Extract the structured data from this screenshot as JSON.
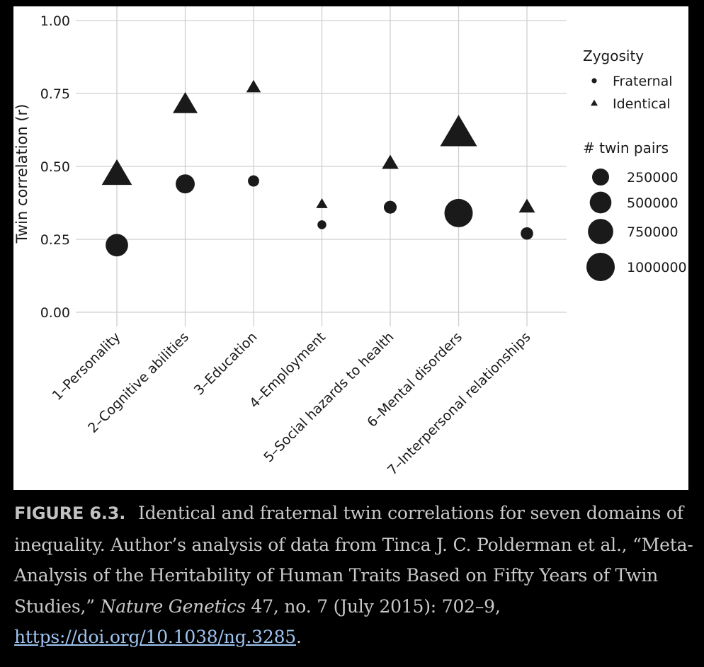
{
  "chart_data": {
    "type": "scatter",
    "ylabel": "Twin correlation (r)",
    "ylim": [
      0,
      1
    ],
    "yticks": [
      "0.00",
      "0.25",
      "0.50",
      "0.75",
      "1.00"
    ],
    "ytick_values": [
      0,
      0.25,
      0.5,
      0.75,
      1.0
    ],
    "categories": [
      "1–Personality",
      "2–Cognitive abilities",
      "3–Education",
      "4–Employment",
      "5–Social hazards to health",
      "6–Mental disorders",
      "7–Interpersonal relationships"
    ],
    "series": [
      {
        "name": "Fraternal",
        "shape": "circle",
        "values": [
          0.23,
          0.44,
          0.45,
          0.3,
          0.36,
          0.34,
          0.27
        ],
        "twin_pairs": [
          550000,
          350000,
          60000,
          20000,
          100000,
          1000000,
          90000
        ]
      },
      {
        "name": "Identical",
        "shape": "triangle",
        "values": [
          0.47,
          0.71,
          0.77,
          0.37,
          0.51,
          0.61,
          0.36
        ],
        "twin_pairs": [
          600000,
          350000,
          60000,
          20000,
          100000,
          1000000,
          90000
        ]
      }
    ],
    "grid": true,
    "legend_position": "right",
    "color": "#1a1a1a"
  },
  "legend": {
    "shape_title": "Zygosity",
    "shape_items": [
      "Fraternal",
      "Identical"
    ],
    "size_title": "# twin pairs",
    "size_items": [
      "250000",
      "500000",
      "750000",
      "1000000"
    ],
    "size_values": [
      250000,
      500000,
      750000,
      1000000
    ]
  },
  "caption": {
    "label": "FIGURE 6.3.",
    "text_1": "Identical and fraternal twin correlations for seven domains of inequality. Author’s analysis of data from Tinca J. C. Polderman et al., “Meta-Analysis of the Heritability of Human Traits Based on Fifty Years of Twin Studies,”",
    "journal": "Nature Genetics",
    "text_2": "47, no. 7 (July 2015): 702–9,",
    "link": "https://doi.org/10.1038/ng.3285",
    "text_3": "."
  }
}
